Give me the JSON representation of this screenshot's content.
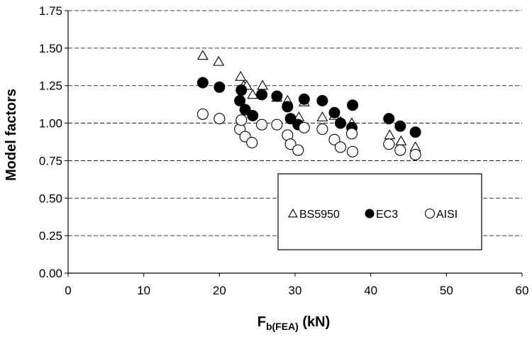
{
  "chart_data": {
    "type": "scatter",
    "xlabel_main": "F",
    "xlabel_sub": "b(FEA)",
    "xlabel_unit": " (kN)",
    "ylabel": "Model factors",
    "xlim": [
      0,
      60
    ],
    "ylim": [
      0,
      1.75
    ],
    "x_ticks": [
      "0",
      "10",
      "20",
      "30",
      "40",
      "50",
      "60"
    ],
    "y_ticks": [
      "0.00",
      "0.25",
      "0.50",
      "0.75",
      "1.00",
      "1.25",
      "1.50",
      "1.75"
    ],
    "grid": "horizontal dashed",
    "legend_position": "lower-right",
    "series": [
      {
        "name": "BS5950",
        "marker": "triangle-open",
        "points": [
          [
            17.8,
            1.45
          ],
          [
            19.9,
            1.41
          ],
          [
            22.8,
            1.31
          ],
          [
            23.2,
            1.25
          ],
          [
            23.6,
            1.25
          ],
          [
            24.4,
            1.19
          ],
          [
            25.7,
            1.25
          ],
          [
            27.6,
            1.17
          ],
          [
            29.0,
            1.15
          ],
          [
            30.5,
            1.04
          ],
          [
            31.2,
            1.14
          ],
          [
            33.6,
            1.04
          ],
          [
            35.2,
            1.05
          ],
          [
            36.0,
            1.01
          ],
          [
            37.5,
            1.0
          ],
          [
            42.5,
            0.92
          ],
          [
            44.0,
            0.88
          ],
          [
            45.9,
            0.84
          ]
        ]
      },
      {
        "name": "EC3",
        "marker": "circle-filled",
        "points": [
          [
            17.8,
            1.27
          ],
          [
            20.0,
            1.24
          ],
          [
            22.7,
            1.15
          ],
          [
            22.9,
            1.22
          ],
          [
            23.4,
            1.09
          ],
          [
            24.4,
            1.05
          ],
          [
            25.6,
            1.19
          ],
          [
            27.6,
            1.18
          ],
          [
            29.0,
            1.11
          ],
          [
            29.4,
            1.03
          ],
          [
            30.4,
            0.99
          ],
          [
            31.2,
            1.16
          ],
          [
            33.6,
            1.15
          ],
          [
            35.2,
            1.07
          ],
          [
            36.0,
            1.0
          ],
          [
            37.5,
            0.97
          ],
          [
            37.6,
            1.12
          ],
          [
            42.4,
            1.03
          ],
          [
            43.9,
            0.98
          ],
          [
            45.9,
            0.94
          ]
        ]
      },
      {
        "name": "AISI",
        "marker": "circle-open",
        "points": [
          [
            17.8,
            1.06
          ],
          [
            20.0,
            1.03
          ],
          [
            22.7,
            0.96
          ],
          [
            22.9,
            1.02
          ],
          [
            23.4,
            0.91
          ],
          [
            24.3,
            0.87
          ],
          [
            25.6,
            0.99
          ],
          [
            27.6,
            0.99
          ],
          [
            29.0,
            0.92
          ],
          [
            29.4,
            0.86
          ],
          [
            30.4,
            0.82
          ],
          [
            31.2,
            0.97
          ],
          [
            33.6,
            0.96
          ],
          [
            35.2,
            0.89
          ],
          [
            36.0,
            0.84
          ],
          [
            37.5,
            0.93
          ],
          [
            37.6,
            0.81
          ],
          [
            42.4,
            0.86
          ],
          [
            43.9,
            0.82
          ],
          [
            45.9,
            0.79
          ]
        ]
      }
    ]
  }
}
